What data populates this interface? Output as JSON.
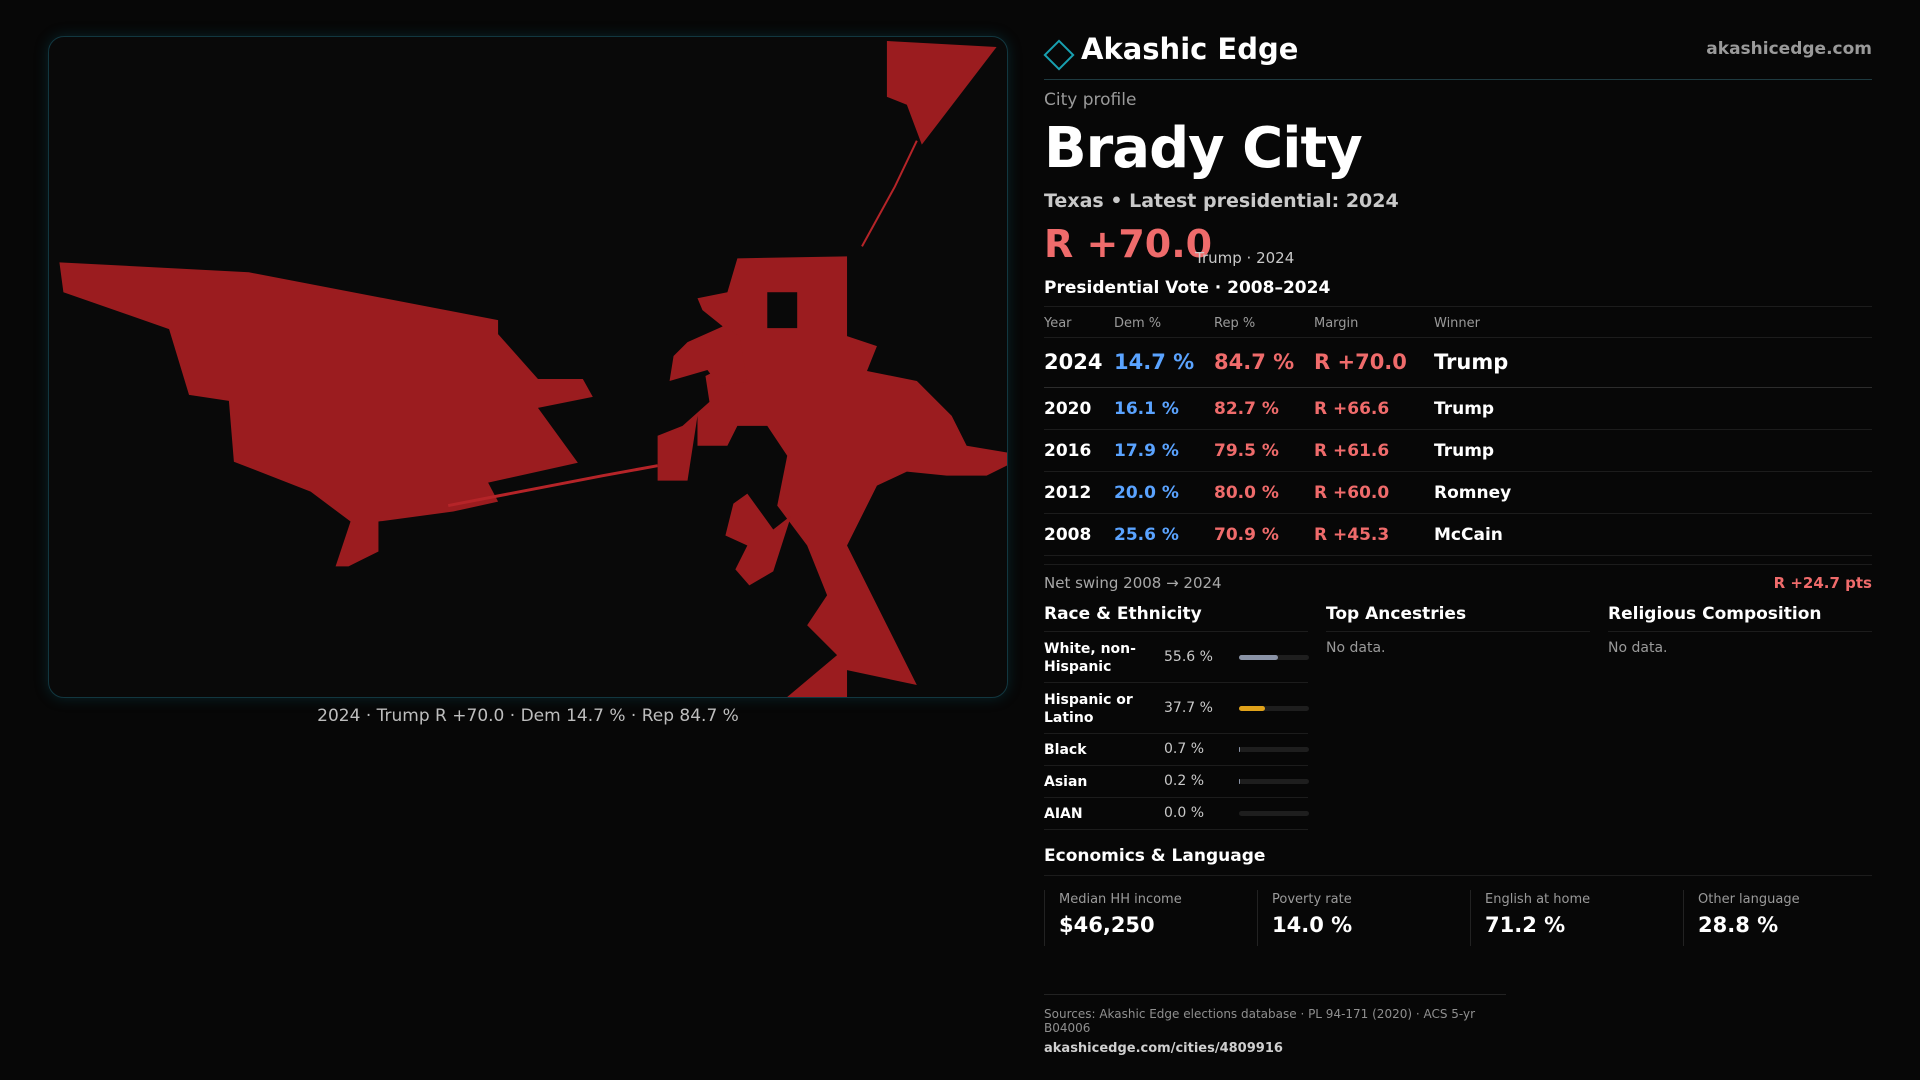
{
  "map": {
    "caption": "2024 · Trump R +70.0 · Dem 14.7 % · Rep 84.7 %",
    "fill_color": "#9b1c1f",
    "stroke_color": "#b52428"
  },
  "brand": {
    "name": "Akashic Edge",
    "url": "akashicedge.com",
    "logo_icon": "diamond-outline-icon",
    "accent": "#18a0b0"
  },
  "profile": {
    "eyebrow": "City profile",
    "city": "Brady City",
    "subline": "Texas • Latest presidential: 2024",
    "margin": "R +70.0",
    "margin_note": "Trump · 2024"
  },
  "vote": {
    "title": "Presidential Vote · 2008–2024",
    "headers": {
      "year": "Year",
      "dem": "Dem %",
      "rep": "Rep %",
      "margin": "Margin",
      "winner": "Winner"
    },
    "rows": [
      {
        "year": "2024",
        "dem": "14.7 %",
        "rep": "84.7 %",
        "margin": "R +70.0",
        "winner": "Trump"
      },
      {
        "year": "2020",
        "dem": "16.1 %",
        "rep": "82.7 %",
        "margin": "R +66.6",
        "winner": "Trump"
      },
      {
        "year": "2016",
        "dem": "17.9 %",
        "rep": "79.5 %",
        "margin": "R +61.6",
        "winner": "Trump"
      },
      {
        "year": "2012",
        "dem": "20.0 %",
        "rep": "80.0 %",
        "margin": "R +60.0",
        "winner": "Romney"
      },
      {
        "year": "2008",
        "dem": "25.6 %",
        "rep": "70.9 %",
        "margin": "R +45.3",
        "winner": "McCain"
      }
    ],
    "swing_label": "Net swing 2008 → 2024",
    "swing_value": "R +24.7 pts"
  },
  "race": {
    "title": "Race & Ethnicity",
    "rows": [
      {
        "label": "White, non-Hispanic",
        "value": "55.6 %",
        "pct": 55.6,
        "color": "#8a93a6"
      },
      {
        "label": "Hispanic or Latino",
        "value": "37.7 %",
        "pct": 37.7,
        "color": "#e0a21a"
      },
      {
        "label": "Black",
        "value": "0.7 %",
        "pct": 0.7,
        "color": "#8a93a6"
      },
      {
        "label": "Asian",
        "value": "0.2 %",
        "pct": 0.2,
        "color": "#8a93a6"
      },
      {
        "label": "AIAN",
        "value": "0.0 %",
        "pct": 0.0,
        "color": "#8a93a6"
      }
    ]
  },
  "ancestries": {
    "title": "Top Ancestries",
    "empty": "No data."
  },
  "religion": {
    "title": "Religious Composition",
    "empty": "No data."
  },
  "economics": {
    "title": "Economics & Language",
    "cells": [
      {
        "label": "Median HH income",
        "value": "$46,250"
      },
      {
        "label": "Poverty rate",
        "value": "14.0 %"
      },
      {
        "label": "English at home",
        "value": "71.2 %"
      },
      {
        "label": "Other language",
        "value": "28.8 %"
      }
    ]
  },
  "sources": {
    "text": "Sources: Akashic Edge elections database · PL 94-171 (2020) · ACS 5-yr B04006",
    "url": "akashicedge.com/cities/4809916"
  }
}
